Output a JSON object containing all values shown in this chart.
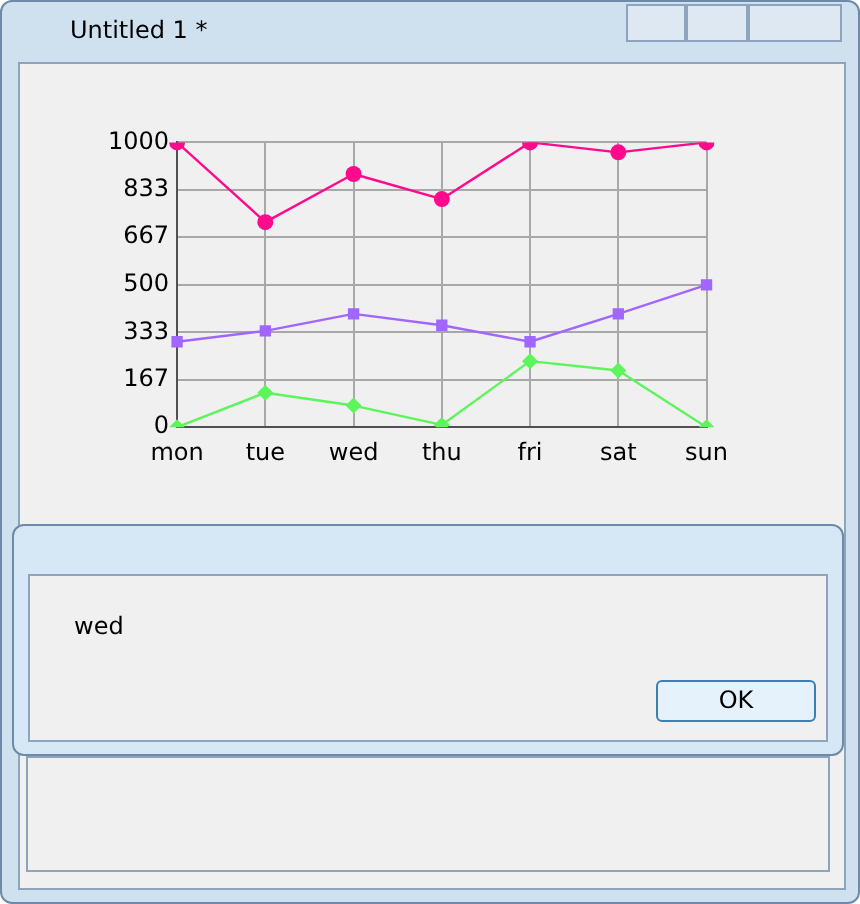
{
  "chart_data": {
    "type": "line",
    "categories": [
      "mon",
      "tue",
      "wed",
      "thu",
      "fri",
      "sat",
      "sun"
    ],
    "series": [
      {
        "color": "#ff0a8c",
        "marker": "circle",
        "values": [
          1000,
          720,
          889,
          801,
          1000,
          965,
          1000
        ]
      },
      {
        "color": "#a066ff",
        "marker": "square",
        "values": [
          300,
          338,
          398,
          358,
          300,
          398,
          500
        ]
      },
      {
        "color": "#5cf55c",
        "marker": "diamond",
        "values": [
          0,
          121,
          76,
          8,
          232,
          199,
          0
        ]
      }
    ],
    "ylim": [
      0,
      1000
    ],
    "yticks": [
      0,
      167,
      333,
      500,
      667,
      833,
      1000
    ],
    "grid": true,
    "legend": false,
    "annotations": [
      "Untitled 1 *",
      "wed",
      "OK"
    ]
  }
}
